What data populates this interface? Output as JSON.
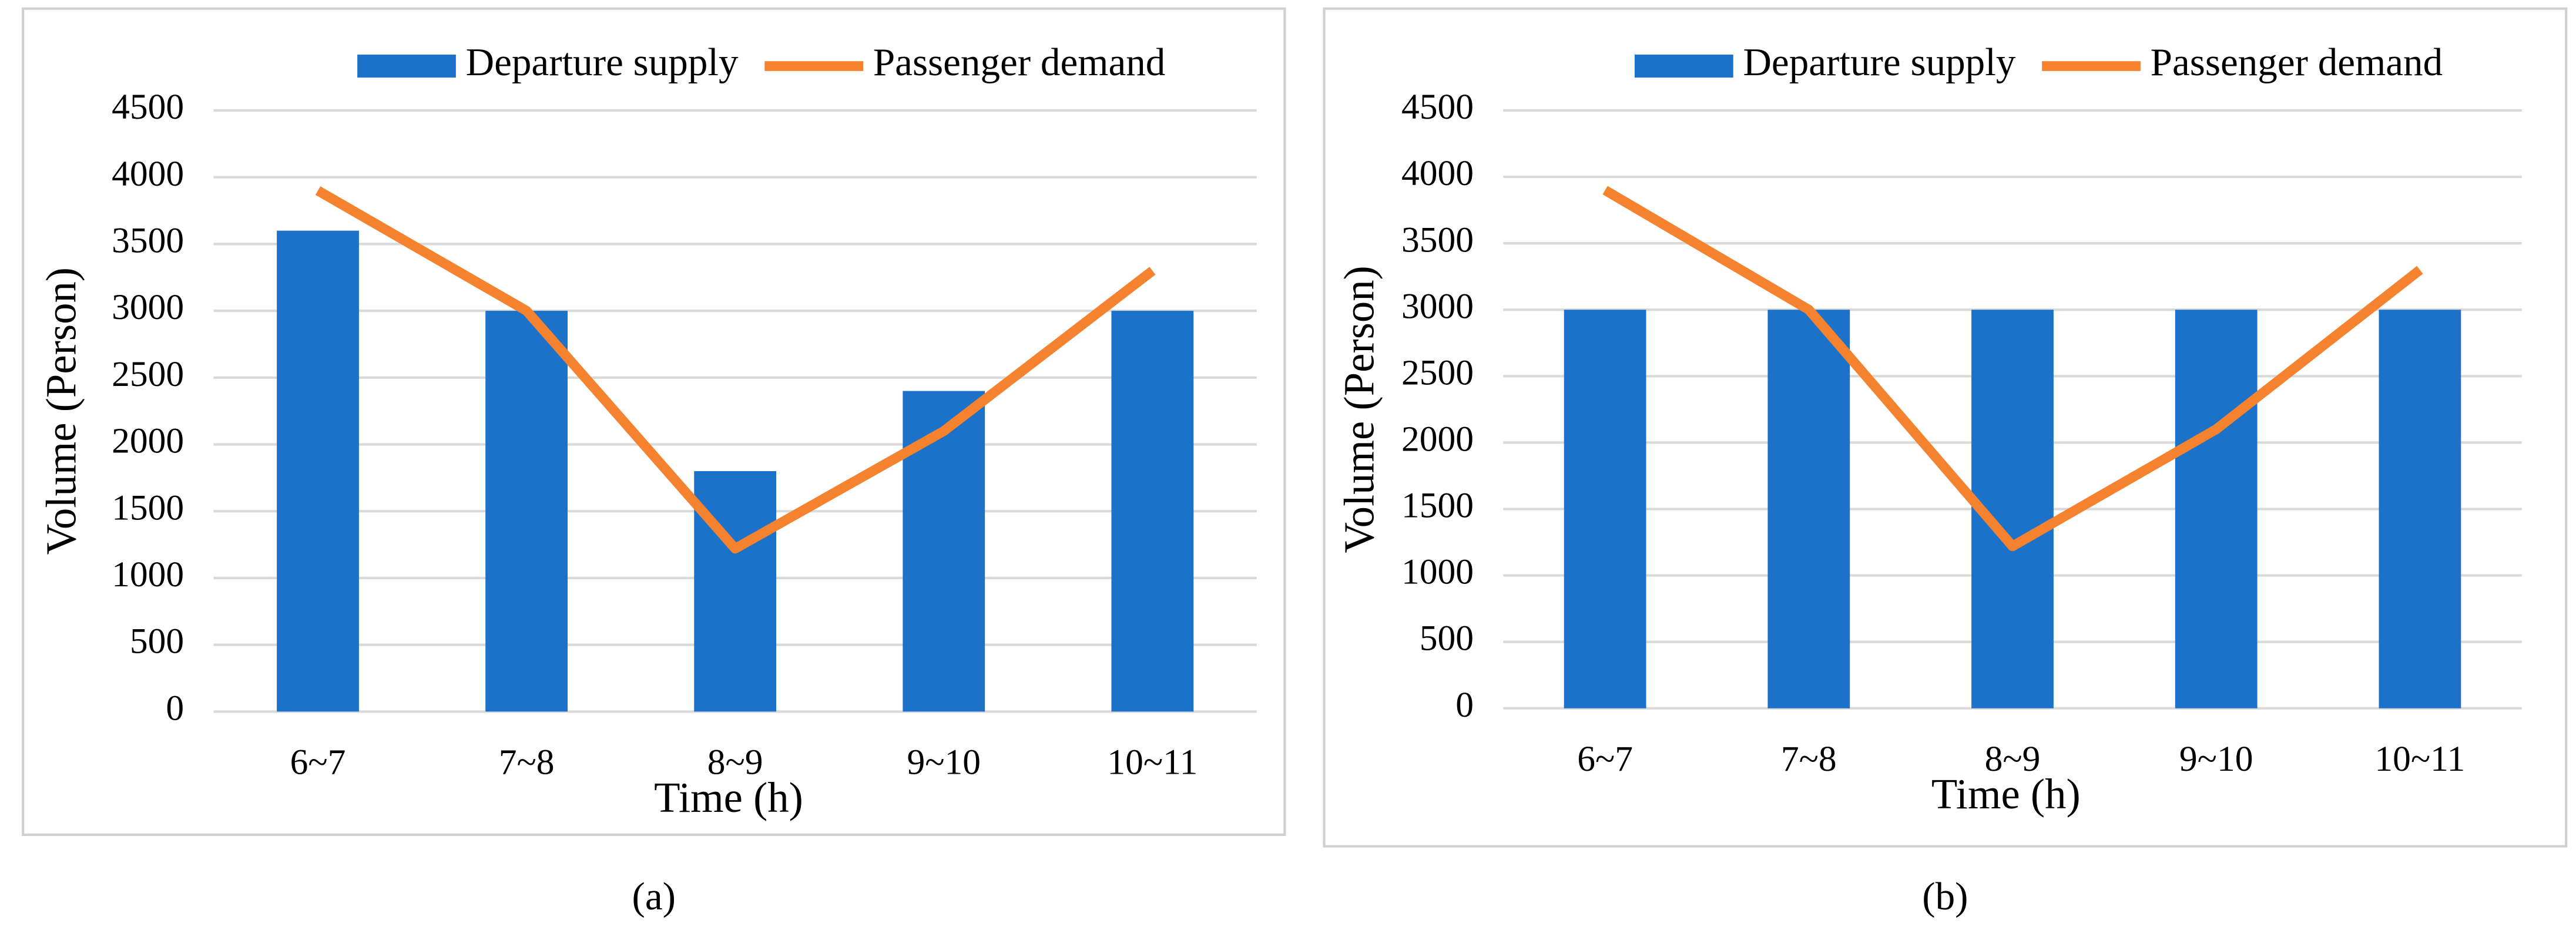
{
  "chart_data": [
    {
      "type": "bar",
      "caption": "(a)",
      "x_label": "Time (h)",
      "y_label": "Volume (Person)",
      "categories": [
        "6~7",
        "7~8",
        "8~9",
        "9~10",
        "10~11"
      ],
      "series": [
        {
          "name": "Departure supply",
          "type": "bar",
          "color": "#1b72c8",
          "values": [
            3600,
            3000,
            1800,
            2400,
            3000
          ]
        },
        {
          "name": "Passenger demand",
          "type": "line",
          "color": "#f5822f",
          "values": [
            3900,
            3000,
            1220,
            2100,
            3300
          ]
        }
      ],
      "ylim": [
        0,
        4500
      ],
      "yticks": [
        0,
        500,
        1000,
        1500,
        2000,
        2500,
        3000,
        3500,
        4000,
        4500
      ],
      "grid": true,
      "legend": "top"
    },
    {
      "type": "bar",
      "caption": "(b)",
      "x_label": "Time (h)",
      "y_label": "Volume (Person)",
      "categories": [
        "6~7",
        "7~8",
        "8~9",
        "9~10",
        "10~11"
      ],
      "series": [
        {
          "name": "Departure supply",
          "type": "bar",
          "color": "#1b72c8",
          "values": [
            3000,
            3000,
            3000,
            3000,
            3000
          ]
        },
        {
          "name": "Passenger demand",
          "type": "line",
          "color": "#f5822f",
          "values": [
            3900,
            3000,
            1220,
            2100,
            3300
          ]
        }
      ],
      "ylim": [
        0,
        4500
      ],
      "yticks": [
        0,
        500,
        1000,
        1500,
        2000,
        2500,
        3000,
        3500,
        4000,
        4500
      ],
      "grid": true,
      "legend": "top"
    }
  ]
}
